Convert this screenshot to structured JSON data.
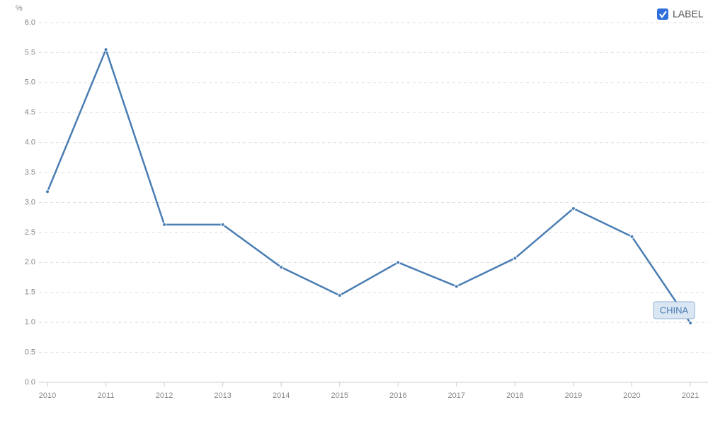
{
  "chart_data": {
    "type": "line",
    "y_label": "%",
    "legend_label": "LABEL",
    "categories": [
      "2010",
      "2011",
      "2012",
      "2013",
      "2014",
      "2015",
      "2016",
      "2017",
      "2018",
      "2019",
      "2020",
      "2021"
    ],
    "series": [
      {
        "name": "CHINA",
        "color": "#4a7db3",
        "values": [
          3.18,
          5.55,
          2.63,
          2.63,
          1.92,
          1.45,
          2.0,
          1.6,
          2.07,
          2.9,
          2.43,
          0.99
        ]
      }
    ],
    "ylim": [
      0,
      6
    ],
    "yticks": [
      {
        "value": 0,
        "label": "0.0"
      },
      {
        "value": 0.5,
        "label": "0.5"
      },
      {
        "value": 1,
        "label": "1.0"
      },
      {
        "value": 1.5,
        "label": "1.5"
      },
      {
        "value": 2,
        "label": "2.0"
      },
      {
        "value": 2.5,
        "label": "2.5"
      },
      {
        "value": 3,
        "label": "3.0"
      },
      {
        "value": 3.5,
        "label": "3.5"
      },
      {
        "value": 4,
        "label": "4.0"
      },
      {
        "value": 4.5,
        "label": "4.5"
      },
      {
        "value": 5,
        "label": "5.0"
      },
      {
        "value": 5.5,
        "label": "5.5"
      },
      {
        "value": 6,
        "label": "6.0"
      }
    ],
    "grid": true
  }
}
